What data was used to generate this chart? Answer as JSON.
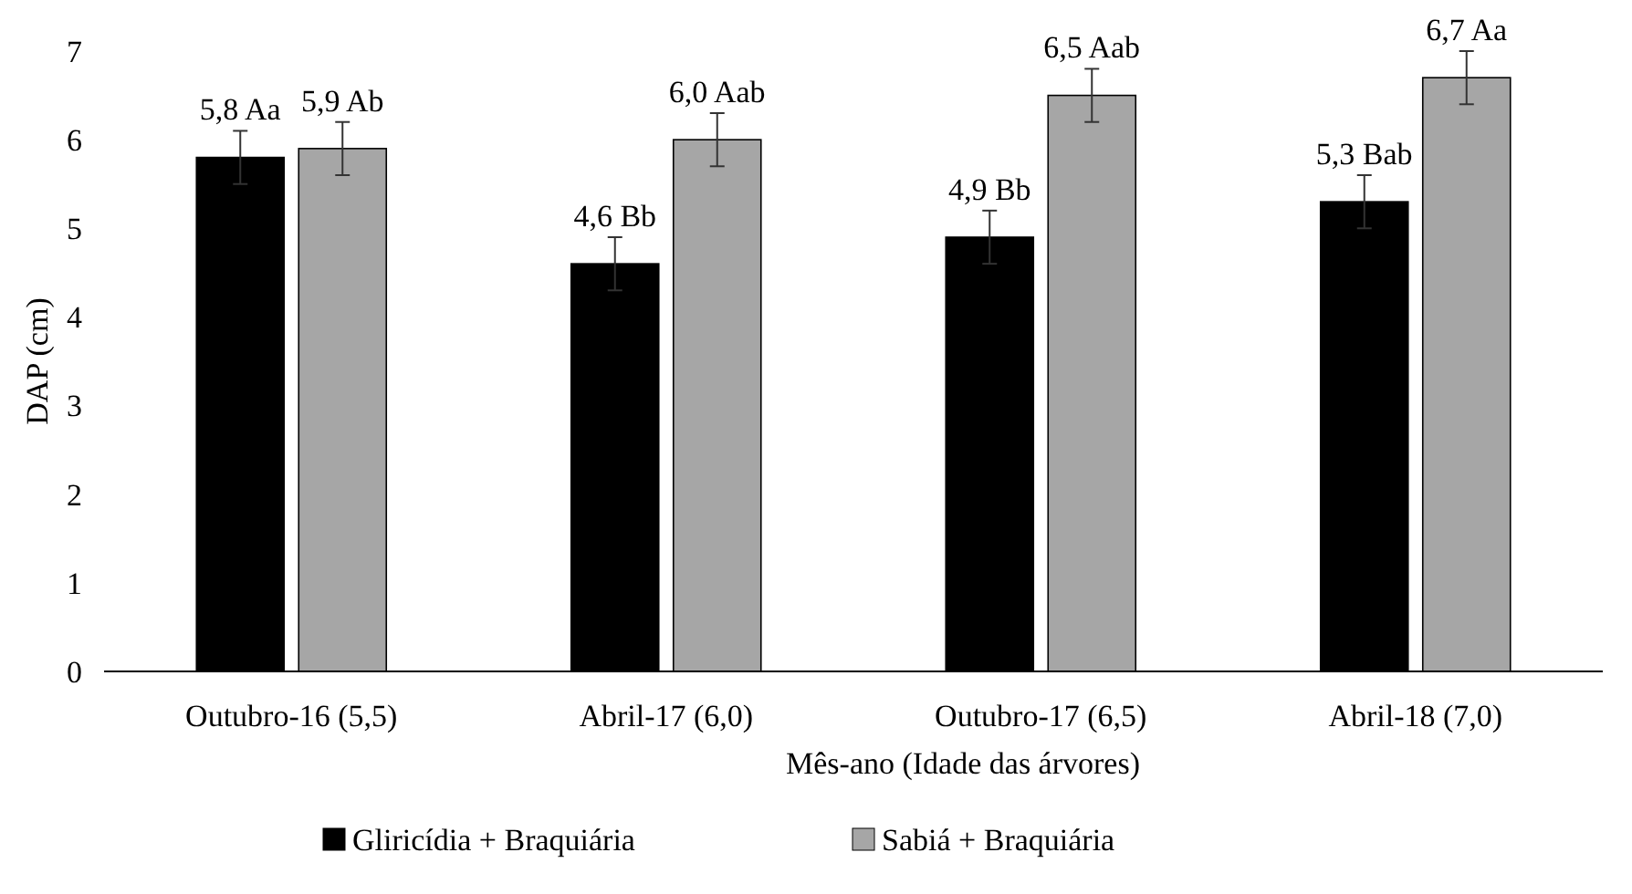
{
  "chart_data": {
    "type": "bar",
    "xlabel": "Mês-ano (Idade das árvores)",
    "ylabel": "DAP (cm)",
    "categories": [
      "Outubro-16 (5,5)",
      "Abril-17 (6,0)",
      "Outubro-17 (6,5)",
      "Abril-18 (7,0)"
    ],
    "series": [
      {
        "name": "Gliricídia + Braquiária",
        "color": "#000000",
        "values": [
          5.8,
          4.6,
          4.9,
          5.3
        ],
        "errors": [
          0.3,
          0.3,
          0.3,
          0.3
        ],
        "value_labels": [
          "5,8 Aa",
          "4,6 Bb",
          "4,9 Bb",
          "5,3 Bab"
        ]
      },
      {
        "name": "Sabiá + Braquiária",
        "color": "#a6a6a6",
        "values": [
          5.9,
          6.0,
          6.5,
          6.7
        ],
        "errors": [
          0.3,
          0.3,
          0.3,
          0.3
        ],
        "value_labels": [
          "5,9 Ab",
          "6,0 Aab",
          "6,5 Aab",
          "6,7 Aa"
        ]
      }
    ],
    "ylim": [
      0,
      7
    ],
    "yticks": [
      0,
      1,
      2,
      3,
      4,
      5,
      6,
      7
    ],
    "grid": false,
    "legend": "bottom"
  }
}
